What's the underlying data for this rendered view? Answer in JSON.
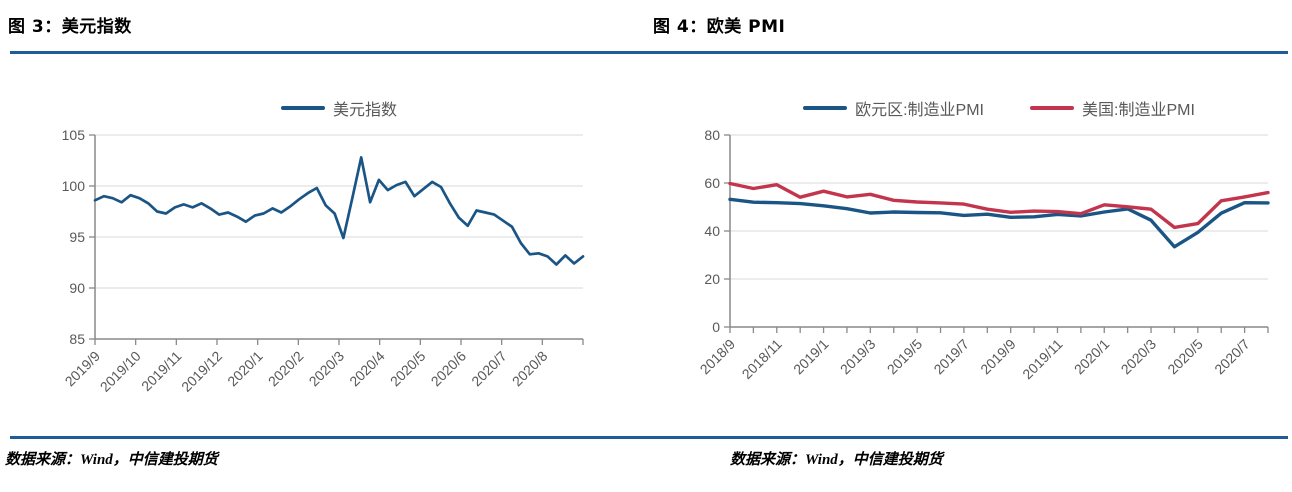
{
  "colors": {
    "divider": "#1F5C99",
    "grid": "#D9D9D9",
    "axis": "#898989",
    "tick_label": "#595959",
    "legend_label": "#595959",
    "blue_line": "#1A5586",
    "red_line": "#C2354C"
  },
  "figures": [
    {
      "title": "图 3：美元指数",
      "source": "数据来源：Wind，中信建投期货"
    },
    {
      "title": "图 4：欧美 PMI",
      "source": "数据来源：Wind，中信建投期货"
    }
  ],
  "chart_data": [
    {
      "id": "dxy",
      "type": "line",
      "title": "图 3：美元指数",
      "legend_position": "top",
      "grid": "horizontal",
      "ylim": [
        85,
        105
      ],
      "y_ticks": [
        85,
        90,
        95,
        100,
        105
      ],
      "x_tick_labels": [
        "2019/9",
        "2019/10",
        "2019/11",
        "2019/12",
        "2020/1",
        "2020/2",
        "2020/3",
        "2020/4",
        "2020/5",
        "2020/6",
        "2020/7",
        "2020/8"
      ],
      "series": [
        {
          "name": "美元指数",
          "color": "#1A5586",
          "values": [
            98.6,
            99.0,
            98.8,
            98.4,
            99.1,
            98.8,
            98.3,
            97.5,
            97.3,
            97.9,
            98.2,
            97.9,
            98.3,
            97.8,
            97.2,
            97.4,
            97.0,
            96.5,
            97.1,
            97.3,
            97.8,
            97.4,
            98.0,
            98.7,
            99.3,
            99.8,
            98.1,
            97.3,
            94.9,
            98.8,
            102.8,
            98.4,
            100.6,
            99.6,
            100.1,
            100.4,
            99.0,
            99.7,
            100.4,
            99.9,
            98.3,
            96.9,
            96.1,
            97.6,
            97.4,
            97.2,
            96.6,
            96.0,
            94.4,
            93.3,
            93.4,
            93.1,
            92.3,
            93.2,
            92.4,
            93.1
          ]
        }
      ]
    },
    {
      "id": "pmi",
      "type": "line",
      "title": "图 4：欧美 PMI",
      "legend_position": "top",
      "grid": "horizontal",
      "ylim": [
        0,
        80
      ],
      "y_ticks": [
        0,
        20,
        40,
        60,
        80
      ],
      "categories": [
        "2018/9",
        "2018/10",
        "2018/11",
        "2018/12",
        "2019/1",
        "2019/2",
        "2019/3",
        "2019/4",
        "2019/5",
        "2019/6",
        "2019/7",
        "2019/8",
        "2019/9",
        "2019/10",
        "2019/11",
        "2019/12",
        "2020/1",
        "2020/2",
        "2020/3",
        "2020/4",
        "2020/5",
        "2020/6",
        "2020/7",
        "2020/8"
      ],
      "x_tick_labels": [
        "2018/9",
        "2018/11",
        "2019/1",
        "2019/3",
        "2019/5",
        "2019/7",
        "2019/9",
        "2019/11",
        "2020/1",
        "2020/3",
        "2020/5",
        "2020/7"
      ],
      "series": [
        {
          "name": "欧元区:制造业PMI",
          "color": "#1A5586",
          "values": [
            53.2,
            52.0,
            51.8,
            51.4,
            50.5,
            49.3,
            47.5,
            47.9,
            47.7,
            47.6,
            46.5,
            47.0,
            45.7,
            45.9,
            46.9,
            46.3,
            47.9,
            49.2,
            44.5,
            33.4,
            39.4,
            47.4,
            51.8,
            51.7
          ]
        },
        {
          "name": "美国:制造业PMI",
          "color": "#C2354C",
          "values": [
            59.8,
            57.7,
            59.3,
            54.1,
            56.6,
            54.2,
            55.3,
            52.8,
            52.1,
            51.7,
            51.2,
            49.1,
            47.8,
            48.3,
            48.1,
            47.2,
            50.9,
            50.1,
            49.1,
            41.5,
            43.1,
            52.6,
            54.2,
            56.0
          ]
        }
      ]
    }
  ]
}
